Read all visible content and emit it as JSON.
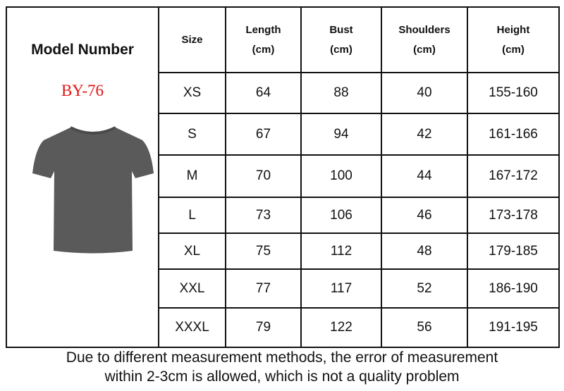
{
  "left_panel": {
    "title": "Model Number",
    "model_code": "BY-76",
    "image": "gray-tshirt"
  },
  "headers": [
    {
      "line1": "Size",
      "line2": ""
    },
    {
      "line1": "Length",
      "line2": "(cm)"
    },
    {
      "line1": "Bust",
      "line2": "(cm)"
    },
    {
      "line1": "Shoulders",
      "line2": "(cm)"
    },
    {
      "line1": "Height",
      "line2": "(cm)"
    }
  ],
  "rows": [
    [
      "XS",
      "64",
      "88",
      "40",
      "155-160"
    ],
    [
      "S",
      "67",
      "94",
      "42",
      "161-166"
    ],
    [
      "M",
      "70",
      "100",
      "44",
      "167-172"
    ],
    [
      "L",
      "73",
      "106",
      "46",
      "173-178"
    ],
    [
      "XL",
      "75",
      "112",
      "48",
      "179-185"
    ],
    [
      "XXL",
      "77",
      "117",
      "52",
      "186-190"
    ],
    [
      "XXXL",
      "79",
      "122",
      "56",
      "191-195"
    ]
  ],
  "note": {
    "line1": "Due to different measurement methods, the error of measurement",
    "line2": "within 2-3cm is allowed, which is not a quality problem"
  },
  "colors": {
    "model_code": "#e31313",
    "shirt": "#5a5a5a"
  }
}
